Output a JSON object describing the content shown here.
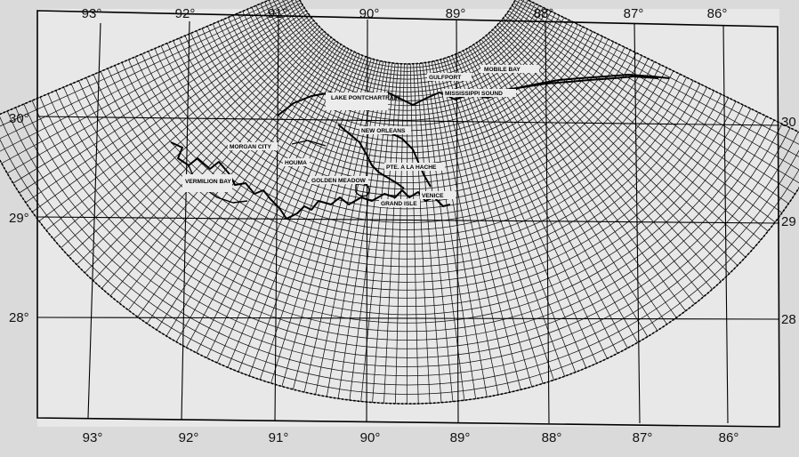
{
  "map": {
    "lon_labels_top": [
      "93°",
      "92°",
      "91°",
      "90°",
      "89°",
      "88°",
      "87°",
      "86°"
    ],
    "lon_labels_bottom": [
      "93°",
      "92°",
      "91°",
      "90°",
      "89°",
      "88°",
      "87°",
      "86°"
    ],
    "lat_labels_left": [
      "30°",
      "29°",
      "28°"
    ],
    "lat_labels_right": [
      "30",
      "29",
      "28"
    ],
    "places": {
      "lake_pontchartrain": "LAKE PONTCHARTRAIN",
      "new_orleans": "NEW ORLEANS",
      "morgan_city": "MORGAN CITY",
      "houma": "HOUMA",
      "vermilion_bay": "VERMILION BAY",
      "golden_meadow": "GOLDEN MEADOW",
      "pte_a_la_hache": "PTE. A LA HACHE",
      "venice": "VENICE",
      "grand_isle": "GRAND ISLE",
      "gulfport": "GULFPORT",
      "mississippi_sound": "MISSISSIPPI SOUND",
      "mobile_bay": "MOBILE BAY"
    }
  }
}
